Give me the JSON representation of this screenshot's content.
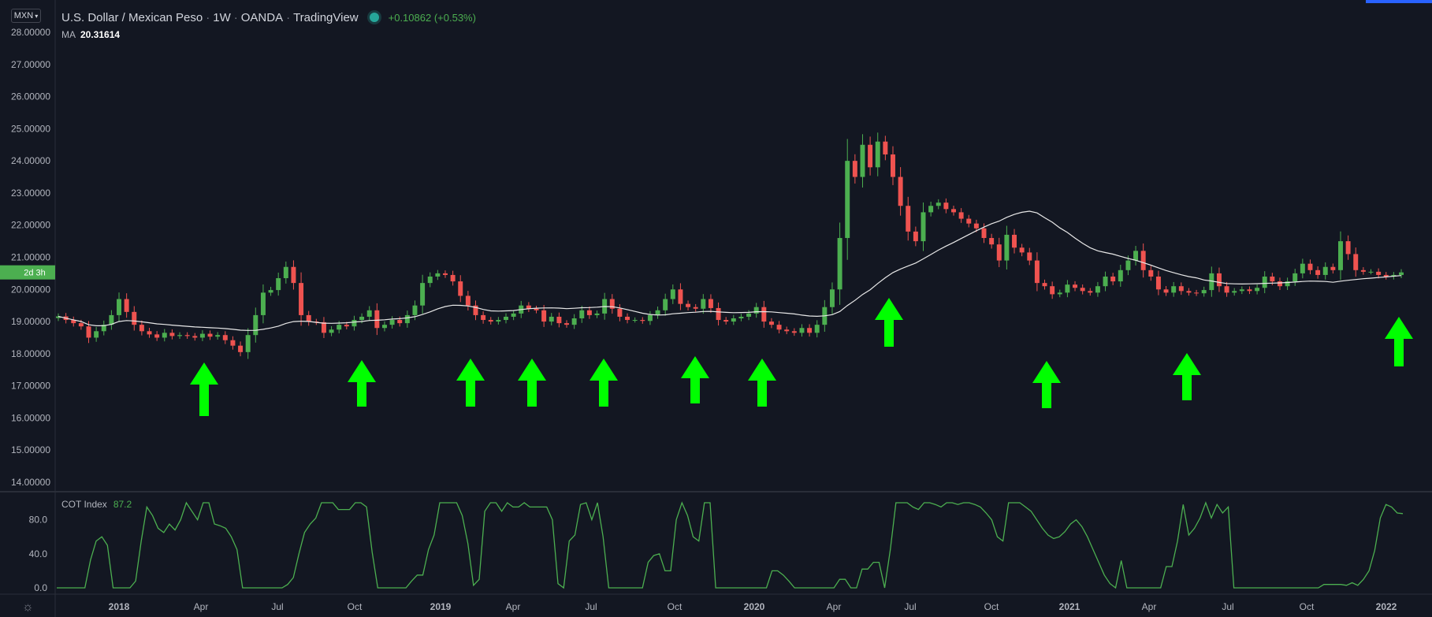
{
  "header": {
    "symbol_button": "MXN",
    "title": "U.S. Dollar / Mexican Peso",
    "interval": "1W",
    "exchange": "OANDA",
    "provider": "TradingView",
    "change": "+0.10862 (+0.53%)",
    "ma_label": "MA",
    "ma_value": "20.31614",
    "countdown": "2d 3h"
  },
  "cot": {
    "label": "COT Index",
    "value": "87.2"
  },
  "colors": {
    "background": "#131722",
    "up": "#4caf50",
    "down": "#ef5350",
    "ma": "#e8e8e8",
    "cot_line": "#4caf50",
    "arrow": "#00ff00"
  },
  "chart_data": [
    {
      "type": "candlestick",
      "title": "U.S. Dollar / Mexican Peso",
      "ylim": [
        13.8,
        28.2
      ],
      "y_ticks": [
        "28.00000",
        "27.00000",
        "26.00000",
        "25.00000",
        "24.00000",
        "23.00000",
        "22.00000",
        "21.00000",
        "20.00000",
        "19.00000",
        "18.00000",
        "17.00000",
        "16.00000",
        "15.00000",
        "14.00000"
      ],
      "x_ticks": [
        "2018",
        "Apr",
        "Jul",
        "Oct",
        "2019",
        "Apr",
        "Jul",
        "Oct",
        "2020",
        "Apr",
        "Jul",
        "Oct",
        "2021",
        "Apr",
        "Jul",
        "Oct",
        "2022"
      ],
      "closes": [
        19.16,
        19.05,
        18.95,
        18.85,
        18.5,
        18.7,
        18.9,
        19.2,
        19.7,
        19.3,
        18.9,
        18.7,
        18.6,
        18.5,
        18.65,
        18.55,
        18.58,
        18.55,
        18.5,
        18.62,
        18.53,
        18.58,
        18.42,
        18.25,
        18.05,
        18.58,
        19.2,
        19.9,
        19.98,
        20.35,
        20.7,
        20.2,
        19.2,
        19.0,
        18.98,
        18.65,
        18.75,
        18.9,
        18.85,
        19.05,
        19.15,
        19.35,
        18.8,
        18.9,
        19.05,
        18.95,
        19.2,
        19.5,
        20.2,
        20.4,
        20.5,
        20.45,
        20.25,
        19.8,
        19.5,
        19.2,
        19.05,
        19.0,
        19.05,
        19.15,
        19.25,
        19.5,
        19.4,
        19.35,
        19.0,
        19.15,
        18.95,
        18.9,
        19.1,
        19.35,
        19.2,
        19.25,
        19.7,
        19.4,
        19.15,
        19.05,
        19.05,
        19.02,
        19.2,
        19.35,
        19.7,
        20.0,
        19.55,
        19.45,
        19.4,
        19.7,
        19.42,
        19.05,
        19.0,
        19.1,
        19.15,
        19.25,
        19.45,
        19.0,
        18.9,
        18.75,
        18.7,
        18.65,
        18.8,
        18.65,
        18.9,
        19.45,
        20.0,
        21.6,
        24.0,
        23.5,
        24.5,
        23.8,
        24.6,
        24.2,
        23.5,
        22.6,
        21.8,
        21.5,
        22.4,
        22.6,
        22.7,
        22.5,
        22.4,
        22.2,
        22.05,
        21.9,
        21.6,
        21.4,
        20.9,
        21.7,
        21.3,
        21.15,
        20.9,
        20.2,
        20.1,
        19.85,
        19.9,
        20.15,
        20.05,
        19.95,
        19.9,
        20.1,
        20.4,
        20.25,
        20.6,
        20.9,
        21.2,
        20.6,
        20.4,
        20.0,
        19.9,
        20.1,
        19.95,
        19.9,
        19.88,
        19.98,
        20.5,
        20.1,
        19.9,
        19.95,
        20.0,
        19.95,
        20.05,
        20.4,
        20.25,
        20.1,
        20.25,
        20.5,
        20.8,
        20.6,
        20.45,
        20.7,
        20.6,
        21.5,
        21.1,
        20.6,
        20.55,
        20.55,
        20.45,
        20.4,
        20.45,
        20.53
      ],
      "ma_label": "MA",
      "ma_last": 20.31614
    },
    {
      "type": "line",
      "title": "COT Index",
      "ylim": [
        0,
        100
      ],
      "y_ticks": [
        "80.0",
        "40.0",
        "0.0"
      ],
      "series": [
        {
          "name": "COT Index",
          "values": [
            0,
            0,
            0,
            0,
            0,
            0,
            33,
            55,
            60,
            50,
            0,
            0,
            0,
            0,
            8,
            55,
            95,
            85,
            70,
            65,
            75,
            68,
            80,
            100,
            90,
            80,
            100,
            100,
            75,
            73,
            70,
            60,
            45,
            0,
            0,
            0,
            0,
            0,
            0,
            0,
            0,
            4,
            12,
            40,
            65,
            75,
            82,
            100,
            100,
            100,
            92,
            92,
            92,
            100,
            100,
            95,
            42,
            0,
            0,
            0,
            0,
            0,
            0,
            8,
            15,
            15,
            45,
            62,
            100,
            100,
            100,
            100,
            85,
            52,
            3,
            10,
            90,
            100,
            100,
            90,
            100,
            95,
            95,
            100,
            95,
            95,
            95,
            95,
            80,
            5,
            0,
            55,
            62,
            98,
            100,
            80,
            100,
            60,
            0,
            0,
            0,
            0,
            0,
            0,
            0,
            30,
            38,
            40,
            20,
            20,
            80,
            100,
            85,
            60,
            55,
            100,
            100,
            0,
            0,
            0,
            0,
            0,
            0,
            0,
            0,
            0,
            0,
            20,
            20,
            15,
            8,
            0,
            0,
            0,
            0,
            0,
            0,
            0,
            0,
            10,
            10,
            0,
            0,
            22,
            22,
            30,
            30,
            0,
            45,
            100,
            100,
            100,
            95,
            92,
            100,
            100,
            98,
            95,
            100,
            100,
            98,
            100,
            100,
            98,
            95,
            88,
            80,
            60,
            55,
            100,
            100,
            100,
            95,
            90,
            80,
            70,
            62,
            58,
            60,
            66,
            75,
            80,
            72,
            60,
            45,
            30,
            15,
            5,
            0,
            32,
            0,
            0,
            0,
            0,
            0,
            0,
            0,
            25,
            25,
            55,
            98,
            62,
            70,
            82,
            100,
            82,
            98,
            88,
            95,
            0,
            0,
            0,
            0,
            0,
            0,
            0,
            0,
            0,
            0,
            0,
            0,
            0,
            0,
            0,
            0,
            4,
            4,
            4,
            4,
            3,
            6,
            3,
            10,
            20,
            44,
            82,
            98,
            95,
            88,
            87.2
          ]
        }
      ],
      "current_value": 87.2
    }
  ]
}
